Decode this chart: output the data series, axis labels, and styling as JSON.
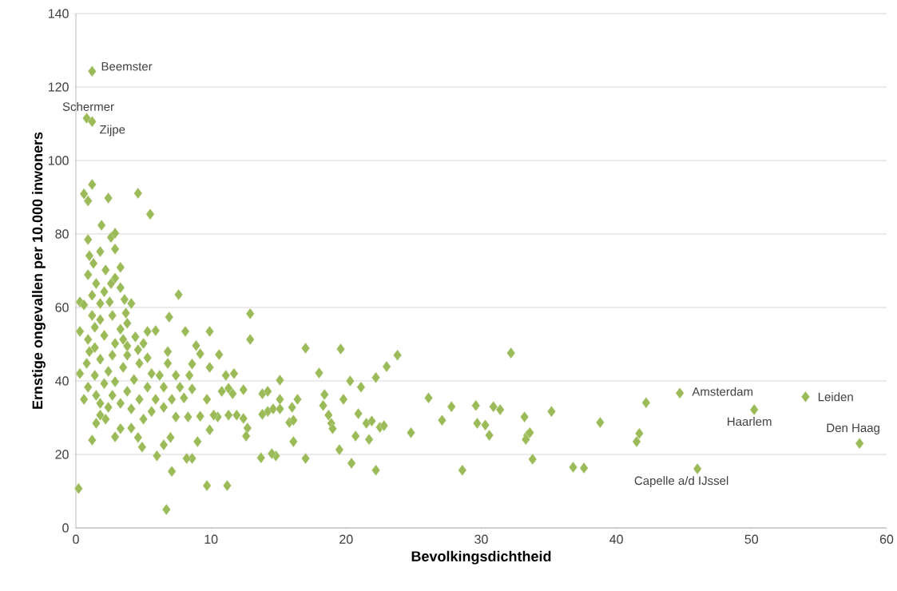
{
  "chart_data": {
    "type": "scatter",
    "xlabel": "Bevolkingsdichtheid",
    "ylabel": "Ernstige ongevallen per 10.000 inwoners",
    "xlim": [
      0,
      60
    ],
    "ylim": [
      0,
      140
    ],
    "xticks": [
      0,
      10,
      20,
      30,
      40,
      50,
      60
    ],
    "yticks": [
      0,
      20,
      40,
      60,
      80,
      100,
      120,
      140
    ],
    "grid": "y",
    "marker": "diamond",
    "series": [
      {
        "color": "#9bbb59",
        "x": [
          1.2,
          0.8,
          1.2,
          44.7,
          54.0,
          50.2,
          58.0,
          46.0,
          1.2,
          0.6,
          0.9,
          2.4,
          4.6,
          5.5,
          1.9,
          0.9,
          2.6,
          2.9,
          2.9,
          1.8,
          1.0,
          1.3,
          3.3,
          2.2,
          0.9,
          2.9,
          1.5,
          0.3,
          0.6,
          1.8,
          2.5,
          3.7,
          7.6,
          12.9,
          12.9,
          6.9,
          9.9,
          8.1,
          5.3,
          5.9,
          0.3,
          17.0,
          19.6,
          23.8,
          32.2,
          23.0,
          22.2,
          20.3,
          15.1,
          10.6,
          9.2,
          8.9,
          8.6,
          9.9,
          11.1,
          11.7,
          12.4,
          13.8,
          15.1,
          18.0,
          18.4,
          21.1,
          26.1,
          27.8,
          29.6,
          30.9,
          31.4,
          29.7,
          27.1,
          24.8,
          30.3,
          30.6,
          33.2,
          33.4,
          33.6,
          35.2,
          38.8,
          33.3,
          33.8,
          28.6,
          36.8,
          37.6,
          41.5,
          41.7,
          42.2,
          22.2,
          20.4,
          19.5,
          17.0,
          16.1,
          14.8,
          14.5,
          13.7,
          15.8,
          16.1,
          14.2,
          13.8,
          12.4,
          12.7,
          12.6,
          11.3,
          11.9,
          14.2,
          14.6,
          15.1,
          16.0,
          16.4,
          18.3,
          18.7,
          18.9,
          19.0,
          19.8,
          20.9,
          21.5,
          21.7,
          20.7,
          22.5,
          22.8,
          21.9,
          9.9,
          10.5,
          10.2,
          9.7,
          10.8,
          11.3,
          11.6,
          9.7,
          11.2,
          6.7,
          0.2,
          7.1,
          7.0,
          8.6,
          8.2,
          9.0,
          9.2,
          8.3,
          7.4,
          6.0,
          6.5,
          4.9,
          1.2,
          4.6,
          2.9,
          3.3,
          4.1,
          1.5,
          2.2,
          1.8,
          0.3,
          0.8,
          1.0,
          0.9,
          1.4,
          1.2,
          1.8,
          2.1,
          1.4,
          1.8,
          1.4,
          0.9,
          1.5,
          2.1,
          2.4,
          2.7,
          2.9,
          3.3,
          2.7,
          3.8,
          3.5,
          3.8,
          3.5,
          2.9,
          2.7,
          3.3,
          3.8,
          4.3,
          4.7,
          4.6,
          4.4,
          5.0,
          5.3,
          5.6,
          5.3,
          4.7,
          4.1,
          5.9,
          6.5,
          6.2,
          6.8,
          7.4,
          7.7,
          8.0,
          7.1,
          8.6,
          8.4,
          6.5,
          5.6,
          5.0,
          2.4,
          1.8,
          0.6,
          2.1,
          3.3,
          2.6,
          3.6,
          4.1,
          1.2,
          3.8,
          6.8
        ],
        "values": [
          124.3,
          111.5,
          110.6,
          36.7,
          35.7,
          32.2,
          23.0,
          16.1,
          93.5,
          90.9,
          89,
          89.8,
          91.1,
          85.4,
          82.4,
          78.5,
          79.1,
          80.2,
          75.9,
          75.2,
          74.1,
          72,
          70.9,
          70.2,
          68.9,
          68,
          66.5,
          61.5,
          60.7,
          61.1,
          61.5,
          58.5,
          63.5,
          51.3,
          58.3,
          57.4,
          53.5,
          53.5,
          53.5,
          53.7,
          53.5,
          48.9,
          48.7,
          47.0,
          47.6,
          43.9,
          40.9,
          40,
          40.2,
          47.2,
          47.4,
          49.6,
          44.6,
          43.7,
          41.5,
          42,
          37.6,
          36.5,
          35,
          42.2,
          36.3,
          38.3,
          35.4,
          33,
          33.3,
          33,
          32.2,
          28.5,
          29.3,
          25.9,
          28,
          25.2,
          30.2,
          25.2,
          25.9,
          31.7,
          28.7,
          24.1,
          18.7,
          15.7,
          16.5,
          16.3,
          23.5,
          25.7,
          34.1,
          15.7,
          17.6,
          21.3,
          18.9,
          23.5,
          19.6,
          20.2,
          19.1,
          28.7,
          29.3,
          31.7,
          30.9,
          29.8,
          27.2,
          25,
          30.7,
          30.7,
          37.2,
          32.4,
          32.4,
          32.8,
          35,
          33.3,
          30.7,
          28.5,
          27,
          35,
          31.1,
          28.5,
          24.1,
          25,
          27.4,
          27.8,
          29.1,
          26.7,
          30.2,
          30.7,
          35,
          37.2,
          38,
          36.5,
          11.5,
          11.5,
          5.0,
          10.7,
          15.4,
          24.6,
          18.9,
          18.9,
          23.5,
          30.4,
          30.2,
          30.2,
          19.6,
          22.6,
          22,
          23.9,
          24.6,
          24.8,
          27,
          27.2,
          28.5,
          29.6,
          30.7,
          42,
          44.8,
          48,
          51.3,
          54.6,
          57.8,
          56.7,
          52.4,
          49.1,
          45.9,
          41.5,
          38.3,
          36.1,
          39.3,
          42.6,
          47,
          50.2,
          54.1,
          57.8,
          55.7,
          51.3,
          47,
          43.7,
          39.8,
          36.1,
          33.9,
          37.2,
          40.4,
          44.8,
          48.5,
          52,
          50.2,
          46.3,
          42,
          38.3,
          35,
          32.4,
          35,
          38.3,
          41.5,
          44.8,
          41.5,
          38.3,
          35.4,
          35,
          37.8,
          41.5,
          32.8,
          31.7,
          29.6,
          32.8,
          33.9,
          35,
          64.3,
          65.4,
          66.5,
          62.2,
          61.1,
          63.3,
          49.5,
          48
        ]
      }
    ],
    "annotations": [
      {
        "text": "Beemster",
        "x": 1.2,
        "y": 124.3
      },
      {
        "text": "Schermer",
        "x": 0.8,
        "y": 111.5
      },
      {
        "text": "Zijpe",
        "x": 1.2,
        "y": 110.6
      },
      {
        "text": "Amsterdam",
        "x": 44.7,
        "y": 36.7
      },
      {
        "text": "Leiden",
        "x": 54.0,
        "y": 35.7
      },
      {
        "text": "Haarlem",
        "x": 50.2,
        "y": 32.2
      },
      {
        "text": "Den Haag",
        "x": 58.0,
        "y": 23.0
      },
      {
        "text": "Capelle a/d IJssel",
        "x": 46.0,
        "y": 16.1
      }
    ]
  }
}
